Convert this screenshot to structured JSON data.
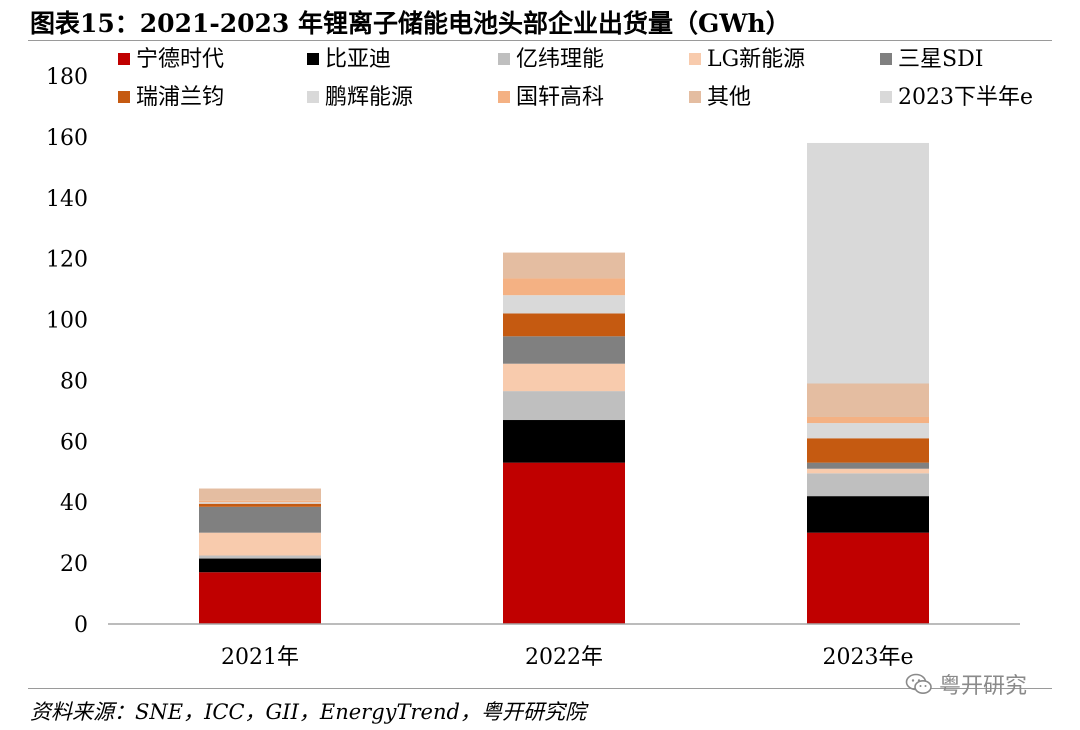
{
  "title": "图表15：2021-2023 年锂离子储能电池头部企业出货量（GWh）",
  "source": "资料来源：SNE，ICC，GII，EnergyTrend，粤开研究院",
  "watermark": "粤开研究",
  "chart_data": {
    "type": "bar",
    "stacked": true,
    "title": "图表15：2021-2023 年锂离子储能电池头部企业出货量（GWh）",
    "categories": [
      "2021年",
      "2022年",
      "2023年e"
    ],
    "ylim": [
      0,
      180
    ],
    "yticks": [
      0,
      20,
      40,
      60,
      80,
      100,
      120,
      140,
      160,
      180
    ],
    "grid": false,
    "legend_position": "top",
    "series": [
      {
        "name": "宁德时代",
        "color": "#c00000",
        "values": [
          17,
          53,
          30
        ]
      },
      {
        "name": "比亚迪",
        "color": "#000000",
        "values": [
          4.5,
          14,
          12
        ]
      },
      {
        "name": "亿纬理能",
        "color": "#bfbfbf",
        "values": [
          1,
          9.5,
          7.5
        ]
      },
      {
        "name": "LG新能源",
        "color": "#f8cbad",
        "values": [
          7.5,
          9,
          1.5
        ]
      },
      {
        "name": "三星SDI",
        "color": "#808080",
        "values": [
          8.5,
          9,
          2
        ]
      },
      {
        "name": "瑞浦兰钧",
        "color": "#c55a11",
        "values": [
          1,
          7.5,
          8
        ]
      },
      {
        "name": "鹏辉能源",
        "color": "#d9d9d9",
        "values": [
          0.5,
          6,
          5
        ]
      },
      {
        "name": "国轩高科",
        "color": "#f4b183",
        "values": [
          0.5,
          5.5,
          2
        ]
      },
      {
        "name": "其他",
        "color": "#e4bda1",
        "values": [
          4,
          8.5,
          11
        ]
      },
      {
        "name": "2023下半年e",
        "color": "#d9d9d9",
        "values": [
          0,
          0,
          79
        ]
      }
    ]
  }
}
